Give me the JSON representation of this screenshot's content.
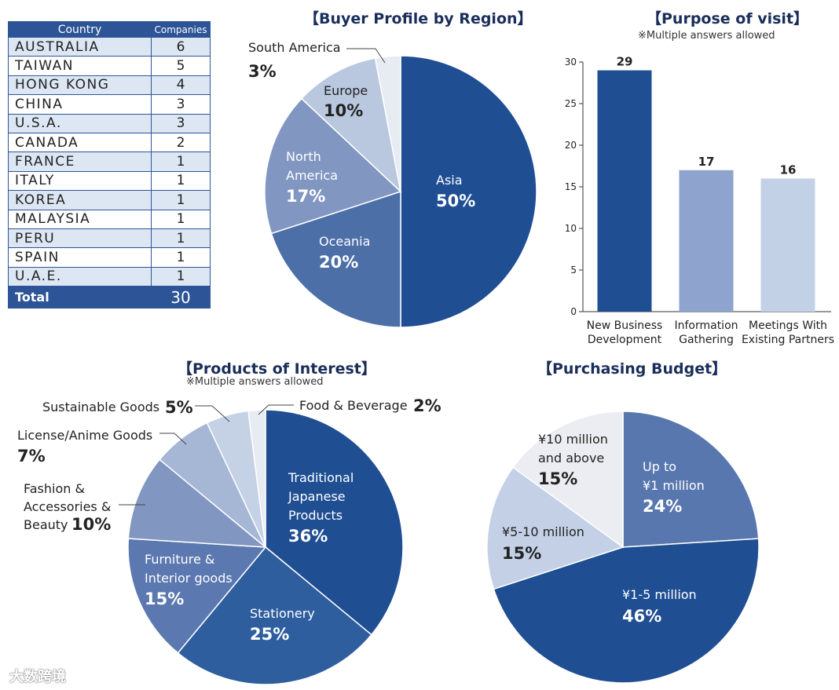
{
  "country_table": {
    "header_country": "Country",
    "header_companies": "Companies",
    "rows": [
      {
        "country": "AUSTRALIA",
        "companies": 6
      },
      {
        "country": "TAIWAN",
        "companies": 5
      },
      {
        "country": "HONG KONG",
        "companies": 4
      },
      {
        "country": "CHINA",
        "companies": 3
      },
      {
        "country": "U.S.A.",
        "companies": 3
      },
      {
        "country": "CANADA",
        "companies": 2
      },
      {
        "country": "FRANCE",
        "companies": 1
      },
      {
        "country": "ITALY",
        "companies": 1
      },
      {
        "country": "KOREA",
        "companies": 1
      },
      {
        "country": "MALAYSIA",
        "companies": 1
      },
      {
        "country": "PERU",
        "companies": 1
      },
      {
        "country": "SPAIN",
        "companies": 1
      },
      {
        "country": "U.A.E.",
        "companies": 1
      }
    ],
    "total_label": "Total",
    "total_value": 30
  },
  "chart_data": [
    {
      "type": "pie",
      "title": "【Buyer Profile by Region】",
      "slices": [
        {
          "label": "Asia",
          "value": 50,
          "pct_text": "50%",
          "color": "#1f4e93"
        },
        {
          "label": "Oceania",
          "value": 20,
          "pct_text": "20%",
          "color": "#4d6fa8"
        },
        {
          "label": "North America",
          "value": 17,
          "pct_text": "17%",
          "color": "#8197c2"
        },
        {
          "label": "Europe",
          "value": 10,
          "pct_text": "10%",
          "color": "#b9c7df"
        },
        {
          "label": "South America",
          "value": 3,
          "pct_text": "3%",
          "color": "#e7ebf2"
        }
      ]
    },
    {
      "type": "bar",
      "title": "【Purpose of visit】",
      "subtitle": "※Multiple answers allowed",
      "categories": [
        "New Business Development",
        "Information Gathering",
        "Meetings With Existing Partners"
      ],
      "category_lines": [
        [
          "New Business",
          "Development"
        ],
        [
          "Information",
          "Gathering"
        ],
        [
          "Meetings With",
          "Existing Partners"
        ]
      ],
      "values": [
        29,
        17,
        16
      ],
      "colors": [
        "#1f4e93",
        "#8ea3cd",
        "#c3d1e7"
      ],
      "ylim": [
        0,
        30
      ],
      "yticks": [
        0,
        5,
        10,
        15,
        20,
        25,
        30
      ]
    },
    {
      "type": "pie",
      "title": "【Products of Interest】",
      "subtitle": "※Multiple answers allowed",
      "slices": [
        {
          "label": "Traditional Japanese Products",
          "lines": [
            "Traditional",
            "Japanese",
            "Products"
          ],
          "value": 36,
          "pct_text": "36%",
          "color": "#1f4e93"
        },
        {
          "label": "Stationery",
          "lines": [
            "Stationery"
          ],
          "value": 25,
          "pct_text": "25%",
          "color": "#2f5e9f"
        },
        {
          "label": "Furniture & Interior goods",
          "lines": [
            "Furniture &",
            "Interior goods"
          ],
          "value": 15,
          "pct_text": "15%",
          "color": "#5b79b0"
        },
        {
          "label": "Fashion & Accessories & Beauty",
          "lines": [
            "Fashion &",
            "Accessories &",
            "Beauty"
          ],
          "value": 10,
          "pct_text": "10%",
          "color": "#8296c2"
        },
        {
          "label": "License/Anime Goods",
          "lines": [
            "License/Anime Goods"
          ],
          "value": 7,
          "pct_text": "7%",
          "color": "#a6b7d6"
        },
        {
          "label": "Sustainable Goods",
          "lines": [
            "Sustainable Goods"
          ],
          "value": 5,
          "pct_text": "5%",
          "color": "#c5d1e5"
        },
        {
          "label": "Food & Beverage",
          "lines": [
            "Food & Beverage"
          ],
          "value": 2,
          "pct_text": "2%",
          "color": "#e7ebf2"
        }
      ]
    },
    {
      "type": "pie",
      "title": "【Purchasing Budget】",
      "slices": [
        {
          "label": "Up to ¥1 million",
          "lines": [
            "Up to",
            "¥1 million"
          ],
          "value": 24,
          "pct_text": "24%",
          "color": "#5877ae"
        },
        {
          "label": "¥1-5 million",
          "lines": [
            "¥1-5 million"
          ],
          "value": 46,
          "pct_text": "46%",
          "color": "#1f4e93"
        },
        {
          "label": "¥5-10 million",
          "lines": [
            "¥5-10 million"
          ],
          "value": 15,
          "pct_text": "15%",
          "color": "#c3d0e6"
        },
        {
          "label": "¥10 million and above",
          "lines": [
            "¥10 million",
            "and above"
          ],
          "value": 15,
          "pct_text": "15%",
          "color": "#ebedf2"
        }
      ]
    }
  ],
  "watermark": "大数跨境"
}
